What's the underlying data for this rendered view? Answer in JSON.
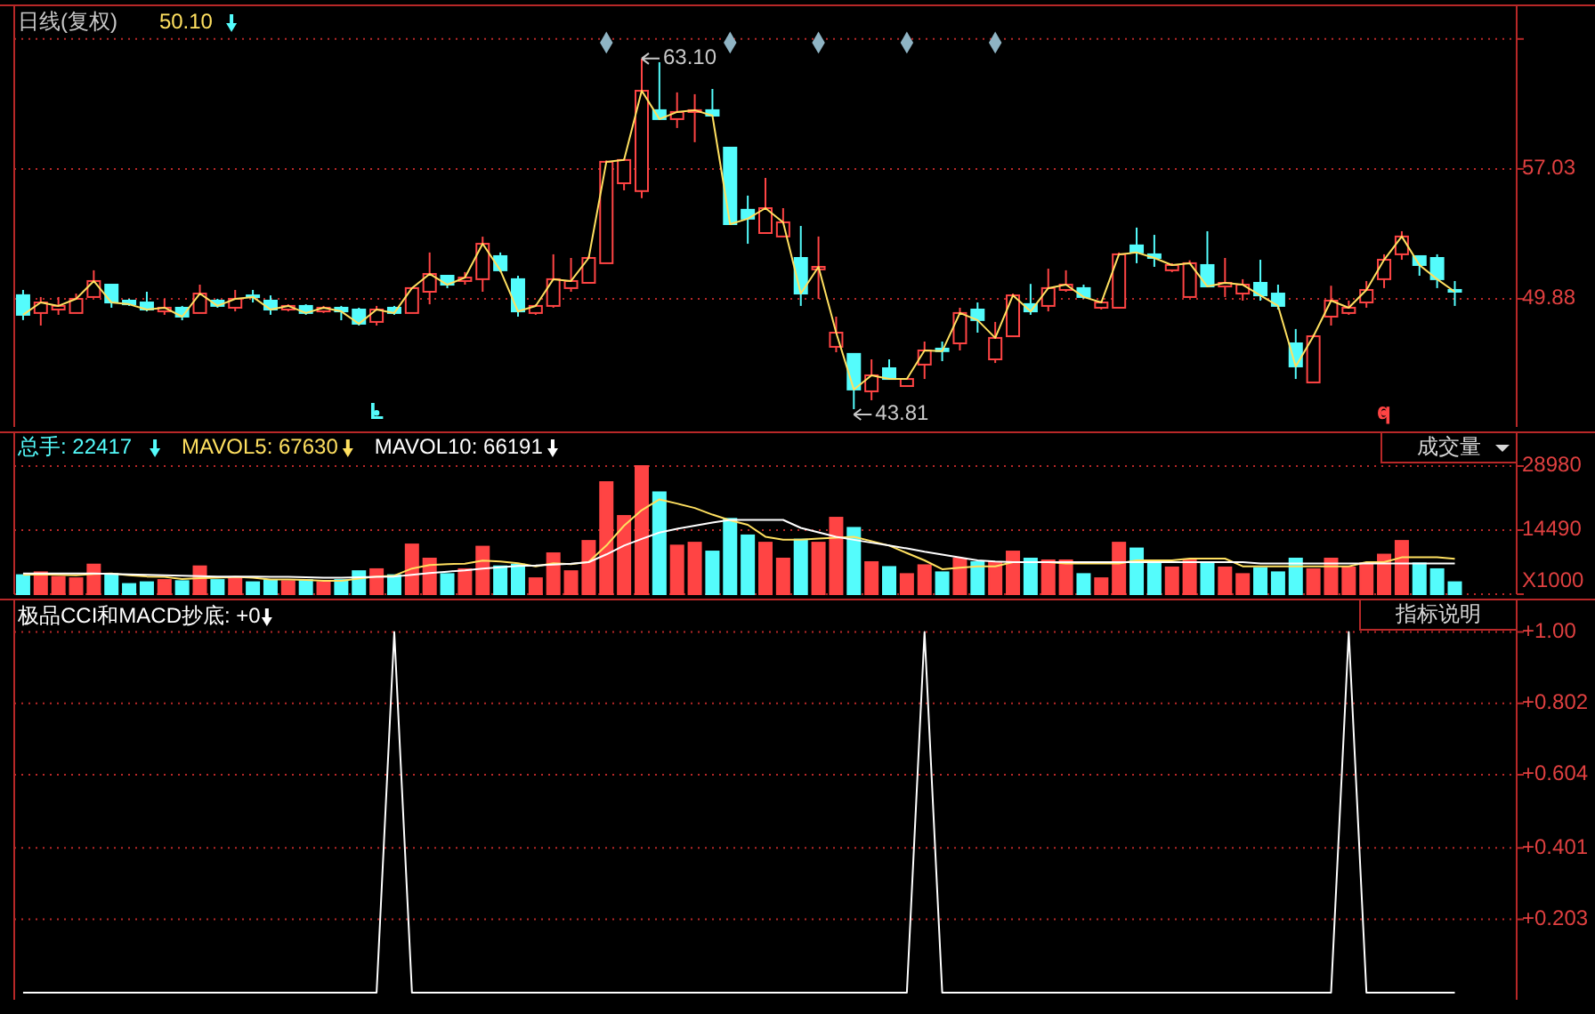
{
  "chart_data": [
    {
      "type": "candlestick",
      "categories": [
        null,
        null,
        null,
        null,
        null,
        null,
        null,
        null,
        null,
        null,
        null,
        null,
        null,
        null,
        null,
        null,
        null,
        null,
        null,
        null,
        null,
        null,
        null,
        null,
        null,
        null,
        null,
        null,
        null,
        null,
        null,
        null,
        null,
        null,
        null,
        null,
        null,
        null,
        null,
        null,
        null,
        null,
        null,
        null,
        null,
        null,
        null,
        null,
        null,
        null,
        null,
        null,
        null,
        null,
        null,
        null,
        null,
        null,
        null,
        null,
        null,
        null,
        null,
        null,
        null,
        null,
        null,
        null,
        null,
        null,
        null,
        null,
        null,
        null,
        null,
        null,
        null,
        null,
        null,
        null,
        null,
        null
      ],
      "ohlc": [
        [
          50.08,
          50.37,
          48.71,
          49.0
        ],
        [
          49.1,
          49.98,
          48.41,
          49.68
        ],
        [
          49.29,
          49.98,
          49.0,
          49.49
        ],
        [
          49.1,
          50.17,
          49.1,
          49.88
        ],
        [
          49.98,
          51.45,
          49.98,
          50.86
        ],
        [
          50.66,
          50.66,
          49.39,
          49.68
        ],
        [
          49.78,
          49.88,
          49.49,
          49.58
        ],
        [
          49.68,
          50.27,
          49.19,
          49.29
        ],
        [
          49.19,
          49.88,
          49.0,
          49.39
        ],
        [
          49.39,
          49.49,
          48.7,
          48.9
        ],
        [
          49.1,
          50.66,
          49.1,
          50.17
        ],
        [
          49.78,
          49.88,
          49.39,
          49.49
        ],
        [
          49.39,
          50.37,
          49.19,
          49.88
        ],
        [
          50.07,
          50.37,
          49.68,
          49.98
        ],
        [
          49.78,
          50.07,
          49.0,
          49.29
        ],
        [
          49.29,
          49.58,
          49.19,
          49.49
        ],
        [
          49.49,
          49.58,
          49.0,
          49.1
        ],
        [
          49.19,
          49.49,
          49.1,
          49.39
        ],
        [
          49.39,
          49.49,
          48.7,
          49.19
        ],
        [
          49.29,
          49.39,
          48.41,
          48.51
        ],
        [
          48.61,
          49.49,
          48.41,
          49.29
        ],
        [
          49.39,
          49.49,
          49.0,
          49.1
        ],
        [
          49.1,
          50.47,
          49.1,
          50.47
        ],
        [
          50.27,
          52.43,
          49.58,
          51.25
        ],
        [
          51.15,
          51.15,
          50.47,
          50.66
        ],
        [
          50.86,
          51.35,
          50.66,
          51.05
        ],
        [
          50.96,
          53.3,
          50.27,
          52.91
        ],
        [
          52.23,
          52.43,
          51.35,
          51.45
        ],
        [
          50.96,
          51.15,
          48.9,
          49.19
        ],
        [
          49.1,
          49.58,
          49.0,
          49.49
        ],
        [
          49.49,
          52.33,
          49.39,
          50.96
        ],
        [
          50.47,
          52.13,
          50.27,
          50.86
        ],
        [
          50.76,
          52.23,
          50.76,
          52.13
        ],
        [
          51.84,
          57.5,
          51.84,
          57.42
        ],
        [
          56.24,
          57.6,
          55.85,
          57.52
        ],
        [
          55.81,
          63.1,
          55.42,
          61.33
        ],
        [
          60.26,
          62.9,
          59.77,
          59.77
        ],
        [
          59.77,
          61.24,
          59.28,
          60.16
        ],
        [
          60.16,
          61.14,
          58.5,
          60.26
        ],
        [
          60.26,
          61.43,
          59.96,
          59.96
        ],
        [
          58.2,
          58.2,
          53.99,
          53.99
        ],
        [
          54.78,
          55.56,
          52.91,
          54.29
        ],
        [
          53.5,
          56.54,
          53.5,
          54.87
        ],
        [
          53.31,
          54.87,
          53.31,
          54.09
        ],
        [
          52.13,
          53.89,
          49.49,
          50.17
        ],
        [
          51.5,
          53.31,
          49.88,
          51.64
        ],
        [
          47.24,
          48.9,
          46.94,
          48.02
        ],
        [
          46.85,
          46.85,
          43.81,
          44.89
        ],
        [
          44.79,
          46.55,
          44.3,
          45.67
        ],
        [
          46.06,
          46.55,
          45.47,
          45.47
        ],
        [
          45.08,
          45.47,
          45.08,
          45.47
        ],
        [
          46.26,
          47.53,
          45.47,
          47.04
        ],
        [
          47.14,
          47.53,
          46.45,
          47.0
        ],
        [
          47.43,
          49.39,
          47.04,
          49.1
        ],
        [
          49.29,
          49.68,
          48.02,
          48.71
        ],
        [
          46.55,
          48.61,
          46.35,
          47.73
        ],
        [
          47.82,
          50.17,
          47.82,
          50.07
        ],
        [
          49.59,
          50.7,
          49.0,
          49.19
        ],
        [
          49.49,
          51.54,
          49.19,
          50.47
        ],
        [
          50.37,
          51.45,
          50.27,
          50.66
        ],
        [
          50.47,
          50.66,
          49.88,
          49.98
        ],
        [
          49.39,
          49.78,
          49.29,
          49.68
        ],
        [
          49.39,
          52.43,
          49.39,
          52.33
        ],
        [
          52.82,
          53.8,
          51.84,
          52.43
        ],
        [
          52.33,
          53.4,
          51.64,
          52.13
        ],
        [
          51.45,
          51.84,
          51.35,
          51.74
        ],
        [
          49.98,
          52.0,
          49.98,
          51.84
        ],
        [
          51.74,
          53.6,
          50.56,
          50.56
        ],
        [
          50.56,
          52.13,
          49.98,
          50.76
        ],
        [
          50.17,
          50.96,
          49.78,
          50.66
        ],
        [
          50.76,
          52.03,
          49.78,
          50.07
        ],
        [
          50.17,
          50.66,
          49.29,
          49.49
        ],
        [
          47.43,
          48.22,
          45.47,
          46.16
        ],
        [
          45.28,
          47.92,
          45.28,
          47.82
        ],
        [
          48.9,
          50.6,
          48.41,
          49.78
        ],
        [
          49.1,
          49.78,
          49.0,
          49.39
        ],
        [
          49.68,
          50.86,
          49.39,
          50.37
        ],
        [
          50.96,
          52.33,
          50.47,
          52.03
        ],
        [
          52.33,
          53.6,
          52.03,
          53.31
        ],
        [
          52.23,
          52.23,
          51.15,
          51.74
        ],
        [
          52.13,
          52.33,
          50.47,
          50.96
        ],
        [
          50.37,
          50.86,
          49.49,
          50.27
        ]
      ],
      "colors": [
        "#54fcfc",
        "#ff4444",
        "#ff4444",
        "#ff4444",
        "#ff4444",
        "#54fcfc",
        "#54fcfc",
        "#54fcfc",
        "#ff4444",
        "#54fcfc",
        "#ff4444",
        "#54fcfc",
        "#ff4444",
        "#54fcfc",
        "#54fcfc",
        "#ff4444",
        "#54fcfc",
        "#ff4444",
        "#54fcfc",
        "#54fcfc",
        "#ff4444",
        "#54fcfc",
        "#ff4444",
        "#ff4444",
        "#54fcfc",
        "#ff4444",
        "#ff4444",
        "#54fcfc",
        "#54fcfc",
        "#ff4444",
        "#ff4444",
        "#ff4444",
        "#ff4444",
        "#ff4444",
        "#ff4444",
        "#ff4444",
        "#54fcfc",
        "#ff4444",
        "#ff4444",
        "#54fcfc",
        "#54fcfc",
        "#54fcfc",
        "#ff4444",
        "#ff4444",
        "#54fcfc",
        "#ff4444",
        "#ff4444",
        "#54fcfc",
        "#ff4444",
        "#54fcfc",
        "#ff4444",
        "#ff4444",
        "#54fcfc",
        "#ff4444",
        "#54fcfc",
        "#ff4444",
        "#ff4444",
        "#54fcfc",
        "#ff4444",
        "#ff4444",
        "#54fcfc",
        "#ff4444",
        "#ff4444",
        "#54fcfc",
        "#54fcfc",
        "#ff4444",
        "#ff4444",
        "#54fcfc",
        "#ff4444",
        "#ff4444",
        "#54fcfc",
        "#54fcfc",
        "#54fcfc",
        "#ff4444",
        "#ff4444",
        "#ff4444",
        "#ff4444",
        "#ff4444",
        "#ff4444",
        "#54fcfc",
        "#54fcfc",
        "#54fcfc"
      ],
      "series": [
        {
          "type": "line",
          "color": "#ffe060",
          "values": [
            49.0,
            49.68,
            49.49,
            49.88,
            50.86,
            49.68,
            49.58,
            49.29,
            49.39,
            48.9,
            50.17,
            49.49,
            49.88,
            49.98,
            49.29,
            49.49,
            49.1,
            49.39,
            49.19,
            48.51,
            49.29,
            49.1,
            50.47,
            51.25,
            50.66,
            51.05,
            52.91,
            51.45,
            49.19,
            49.49,
            50.96,
            50.86,
            52.13,
            57.42,
            57.52,
            61.33,
            59.77,
            60.16,
            60.26,
            59.96,
            53.99,
            54.29,
            54.87,
            54.09,
            50.17,
            51.64,
            48.02,
            44.89,
            45.67,
            45.47,
            45.47,
            47.04,
            47.0,
            49.1,
            48.71,
            47.73,
            50.07,
            49.19,
            50.47,
            50.66,
            49.98,
            49.68,
            52.33,
            52.43,
            52.13,
            51.74,
            51.84,
            50.56,
            50.76,
            50.66,
            50.07,
            49.49,
            46.16,
            47.82,
            49.78,
            49.39,
            50.37,
            52.03,
            53.31,
            51.74,
            50.96,
            50.27
          ]
        },
        {
          "type": "scatter",
          "marker": "diamond",
          "color": "#8fb4c4",
          "values": [
            null,
            null,
            null,
            null,
            null,
            null,
            null,
            null,
            null,
            null,
            null,
            null,
            null,
            null,
            null,
            null,
            null,
            null,
            null,
            null,
            null,
            null,
            null,
            null,
            null,
            null,
            null,
            null,
            null,
            null,
            null,
            null,
            null,
            63.98,
            null,
            null,
            null,
            null,
            null,
            null,
            63.98,
            null,
            null,
            null,
            null,
            63.98,
            null,
            null,
            null,
            null,
            63.98,
            null,
            null,
            null,
            null,
            63.98,
            null,
            null,
            null,
            null,
            null,
            null,
            null,
            null,
            null,
            null,
            null,
            null,
            null,
            null,
            null,
            null,
            null,
            null,
            null,
            null,
            null,
            null,
            null,
            null,
            null,
            null
          ]
        },
        {
          "type": "scatter",
          "marker": "circle",
          "color": "#54fcfc",
          "values": [
            null,
            null,
            null,
            null,
            null,
            null,
            null,
            null,
            null,
            null,
            null,
            null,
            null,
            null,
            null,
            null,
            null,
            null,
            null,
            null,
            43.6,
            null,
            null,
            null,
            null,
            null,
            null,
            null,
            null,
            null,
            null,
            null,
            null,
            null,
            null,
            null,
            null,
            null,
            null,
            null,
            null,
            null,
            null,
            null,
            null,
            null,
            null,
            null,
            null,
            null,
            null,
            null,
            null,
            null,
            null,
            null,
            null,
            null,
            null,
            null,
            null,
            null,
            null,
            null,
            null,
            null,
            null,
            null,
            null,
            null,
            null,
            null,
            null,
            null,
            null,
            null,
            null,
            null,
            null,
            null,
            null,
            null
          ],
          "value_labels": [
            null,
            null,
            null,
            null,
            null,
            null,
            null,
            null,
            null,
            null,
            null,
            null,
            null,
            null,
            null,
            null,
            null,
            null,
            null,
            null,
            "L",
            null,
            null,
            null,
            null,
            null,
            null,
            null,
            null,
            null,
            null,
            null,
            null,
            null,
            null,
            null,
            null,
            null,
            null,
            null,
            null,
            null,
            null,
            null,
            null,
            null,
            null,
            null,
            null,
            null,
            null,
            null,
            null,
            null,
            null,
            null,
            null,
            null,
            null,
            null,
            null,
            null,
            null,
            null,
            null,
            null,
            null,
            null,
            null,
            null,
            null,
            null,
            null,
            null,
            null,
            null,
            null,
            null,
            null,
            null,
            null,
            null
          ]
        },
        {
          "type": "scatter",
          "marker": "circle",
          "color": "#ff4444",
          "values": [
            null,
            null,
            null,
            null,
            null,
            null,
            null,
            null,
            null,
            null,
            null,
            null,
            null,
            null,
            null,
            null,
            null,
            null,
            null,
            null,
            null,
            null,
            null,
            null,
            null,
            null,
            null,
            null,
            null,
            null,
            null,
            null,
            null,
            null,
            null,
            null,
            null,
            null,
            null,
            null,
            null,
            null,
            null,
            null,
            null,
            null,
            null,
            null,
            null,
            null,
            null,
            null,
            null,
            null,
            null,
            null,
            null,
            null,
            null,
            null,
            null,
            null,
            null,
            null,
            null,
            null,
            null,
            null,
            null,
            null,
            null,
            null,
            null,
            null,
            null,
            null,
            null,
            43.6,
            null,
            null,
            null,
            null
          ],
          "value_labels": [
            null,
            null,
            null,
            null,
            null,
            null,
            null,
            null,
            null,
            null,
            null,
            null,
            null,
            null,
            null,
            null,
            null,
            null,
            null,
            null,
            null,
            null,
            null,
            null,
            null,
            null,
            null,
            null,
            null,
            null,
            null,
            null,
            null,
            null,
            null,
            null,
            null,
            null,
            null,
            null,
            null,
            null,
            null,
            null,
            null,
            null,
            null,
            null,
            null,
            null,
            null,
            null,
            null,
            null,
            null,
            null,
            null,
            null,
            null,
            null,
            null,
            null,
            null,
            null,
            null,
            null,
            null,
            null,
            null,
            null,
            null,
            null,
            null,
            null,
            null,
            null,
            null,
            "q",
            null,
            null,
            null,
            null
          ]
        }
      ],
      "ylim": [
        42.83,
        66.03
      ],
      "yticks": [
        49.88,
        57.03,
        {
          "value": 64.18,
          "label": null
        }
      ],
      "grid": "y",
      "annotations": [
        "日线(复权)",
        "50.10",
        "63.10",
        "43.81"
      ]
    },
    {
      "type": "bar",
      "categories": [
        null,
        null,
        null,
        null,
        null,
        null,
        null,
        null,
        null,
        null,
        null,
        null,
        null,
        null,
        null,
        null,
        null,
        null,
        null,
        null,
        null,
        null,
        null,
        null,
        null,
        null,
        null,
        null,
        null,
        null,
        null,
        null,
        null,
        null,
        null,
        null,
        null,
        null,
        null,
        null,
        null,
        null,
        null,
        null,
        null,
        null,
        null,
        null,
        null,
        null,
        null,
        null,
        null,
        null,
        null,
        null,
        null,
        null,
        null,
        null,
        null,
        null,
        null,
        null,
        null,
        null,
        null,
        null,
        null,
        null,
        null,
        null,
        null,
        null,
        null,
        null,
        null,
        null,
        null,
        null,
        null,
        null
      ],
      "series": [
        {
          "type": "bar",
          "name": "总手: 22417",
          "color": "#54fcfc",
          "colors": [
            "#54fcfc",
            "#ff4444",
            "#ff4444",
            "#ff4444",
            "#ff4444",
            "#54fcfc",
            "#54fcfc",
            "#54fcfc",
            "#ff4444",
            "#54fcfc",
            "#ff4444",
            "#54fcfc",
            "#ff4444",
            "#54fcfc",
            "#54fcfc",
            "#ff4444",
            "#54fcfc",
            "#ff4444",
            "#54fcfc",
            "#54fcfc",
            "#ff4444",
            "#54fcfc",
            "#ff4444",
            "#ff4444",
            "#54fcfc",
            "#ff4444",
            "#ff4444",
            "#54fcfc",
            "#54fcfc",
            "#ff4444",
            "#ff4444",
            "#ff4444",
            "#ff4444",
            "#ff4444",
            "#ff4444",
            "#ff4444",
            "#54fcfc",
            "#ff4444",
            "#ff4444",
            "#54fcfc",
            "#54fcfc",
            "#54fcfc",
            "#ff4444",
            "#ff4444",
            "#54fcfc",
            "#ff4444",
            "#ff4444",
            "#54fcfc",
            "#ff4444",
            "#54fcfc",
            "#ff4444",
            "#ff4444",
            "#54fcfc",
            "#ff4444",
            "#54fcfc",
            "#ff4444",
            "#ff4444",
            "#54fcfc",
            "#ff4444",
            "#ff4444",
            "#54fcfc",
            "#ff4444",
            "#ff4444",
            "#54fcfc",
            "#54fcfc",
            "#ff4444",
            "#ff4444",
            "#54fcfc",
            "#ff4444",
            "#ff4444",
            "#54fcfc",
            "#54fcfc",
            "#54fcfc",
            "#ff4444",
            "#ff4444",
            "#ff4444",
            "#ff4444",
            "#ff4444",
            "#ff4444",
            "#54fcfc",
            "#54fcfc",
            "#54fcfc"
          ],
          "values": [
            4300,
            4950,
            3900,
            3600,
            6700,
            4550,
            2300,
            2700,
            3200,
            2950,
            6300,
            3200,
            3600,
            2700,
            3200,
            2950,
            3200,
            2700,
            3200,
            5200,
            5650,
            4300,
            11250,
            8050,
            4550,
            5650,
            10750,
            6300,
            6700,
            3600,
            9250,
            5200,
            12050,
            25350,
            17700,
            28980,
            23050,
            11000,
            11650,
            9650,
            17050,
            13300,
            11650,
            8050,
            12350,
            11650,
            17300,
            15000,
            7250,
            6150,
            4550,
            6550,
            4950,
            8050,
            7250,
            7250,
            9650,
            8050,
            7650,
            7650,
            4550,
            3600,
            11650,
            10350,
            6950,
            6050,
            7650,
            6950,
            6050,
            4550,
            5900,
            4950,
            8050,
            5650,
            8050,
            6050,
            6950,
            8950,
            12050,
            6950,
            5650,
            2700
          ]
        },
        {
          "type": "line",
          "name": "MAVOL5: 67630",
          "color": "#ffe060",
          "values": [
            4400,
            4500,
            4400,
            4300,
            4600,
            4700,
            4300,
            4000,
            3900,
            3400,
            3600,
            3700,
            3900,
            3700,
            3300,
            3300,
            3200,
            3000,
            3000,
            3500,
            4000,
            4200,
            5800,
            6600,
            6800,
            6900,
            7600,
            7400,
            7000,
            6300,
            7000,
            6800,
            7300,
            11000,
            15500,
            19000,
            21450,
            20500,
            19500,
            18000,
            16700,
            15700,
            13000,
            12350,
            12350,
            12600,
            12800,
            13000,
            12000,
            11000,
            9300,
            7650,
            5650,
            6000,
            6300,
            6300,
            7250,
            7250,
            7250,
            6950,
            6950,
            6950,
            6950,
            7650,
            7650,
            7650,
            8050,
            8050,
            8050,
            6300,
            6300,
            6300,
            6300,
            6300,
            6300,
            6300,
            7250,
            7250,
            8330,
            8330,
            8330,
            8000
          ]
        },
        {
          "type": "line",
          "name": "MAVOL10: 66191",
          "color": "#ffffff",
          "values": [
            4700,
            4700,
            4700,
            4700,
            4700,
            4600,
            4500,
            4400,
            4300,
            4200,
            4100,
            4000,
            4000,
            4000,
            3900,
            3900,
            3800,
            3700,
            3700,
            3800,
            3900,
            4000,
            4400,
            4800,
            5100,
            5400,
            5800,
            6100,
            6400,
            6500,
            6700,
            6900,
            7250,
            9000,
            11000,
            12500,
            13950,
            14800,
            15500,
            16200,
            16800,
            16800,
            16800,
            16800,
            15000,
            14000,
            13000,
            12300,
            11650,
            11000,
            10350,
            9600,
            8950,
            8300,
            7650,
            7400,
            7250,
            7250,
            7250,
            7250,
            7250,
            7250,
            7250,
            7250,
            7250,
            7250,
            7250,
            7250,
            7250,
            7250,
            6950,
            6950,
            6950,
            6950,
            6950,
            6950,
            6950,
            6950,
            6950,
            6950,
            6950,
            6950
          ]
        }
      ],
      "ylim": [
        0,
        36630
      ],
      "yticks": [
        {
          "value": 0,
          "label": "X1000"
        },
        14490,
        28980
      ],
      "grid": "y",
      "legend": "top left",
      "annotations": [
        "成交量"
      ]
    },
    {
      "type": "line",
      "categories": [
        null,
        null,
        null,
        null,
        null,
        null,
        null,
        null,
        null,
        null,
        null,
        null,
        null,
        null,
        null,
        null,
        null,
        null,
        null,
        null,
        null,
        null,
        null,
        null,
        null,
        null,
        null,
        null,
        null,
        null,
        null,
        null,
        null,
        null,
        null,
        null,
        null,
        null,
        null,
        null,
        null,
        null,
        null,
        null,
        null,
        null,
        null,
        null,
        null,
        null,
        null,
        null,
        null,
        null,
        null,
        null,
        null,
        null,
        null,
        null,
        null,
        null,
        null,
        null,
        null,
        null,
        null,
        null,
        null,
        null,
        null,
        null,
        null,
        null,
        null,
        null,
        null,
        null,
        null,
        null,
        null,
        null
      ],
      "series": [
        {
          "name": "极品CCI和MACD抄底: +0",
          "color": "#ffffff",
          "values": [
            0,
            0,
            0,
            0,
            0,
            0,
            0,
            0,
            0,
            0,
            0,
            0,
            0,
            0,
            0,
            0,
            0,
            0,
            0,
            0,
            0,
            1,
            0,
            0,
            0,
            0,
            0,
            0,
            0,
            0,
            0,
            0,
            0,
            0,
            0,
            0,
            0,
            0,
            0,
            0,
            0,
            0,
            0,
            0,
            0,
            0,
            0,
            0,
            0,
            0,
            0,
            1,
            0,
            0,
            0,
            0,
            0,
            0,
            0,
            0,
            0,
            0,
            0,
            0,
            0,
            0,
            0,
            0,
            0,
            0,
            0,
            0,
            0,
            0,
            0,
            1,
            0,
            0,
            0,
            0,
            0,
            0
          ]
        }
      ],
      "ylim": [
        -0.02,
        1.09
      ],
      "legend": "top left",
      "yticks": [
        {
          "value": 0.203,
          "label": "+0.203"
        },
        {
          "value": 0.401,
          "label": "+0.401"
        },
        {
          "value": 0.604,
          "label": "+0.604"
        },
        {
          "value": 0.802,
          "label": "+0.802"
        },
        {
          "value": 1,
          "label": "+1.00"
        }
      ],
      "grid": "y",
      "annotations": [
        "指标说明"
      ]
    }
  ]
}
